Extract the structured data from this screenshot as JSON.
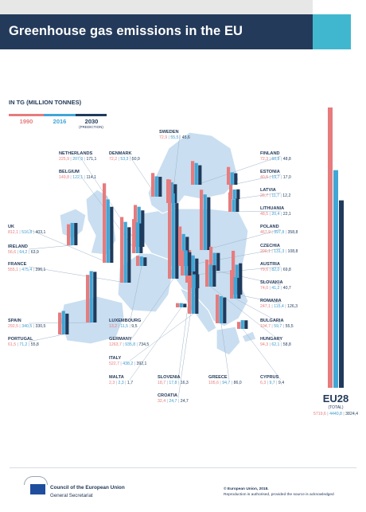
{
  "title": "Greenhouse gas emissions in the EU",
  "unit_label": "IN TG (MILLION TONNES)",
  "legend": [
    {
      "label": "1990",
      "sub": "",
      "color": "#e77b7d"
    },
    {
      "label": "2016",
      "sub": "",
      "color": "#41a6d6"
    },
    {
      "label": "2030",
      "sub": "(PREDICTION)",
      "color": "#1f3a5c"
    }
  ],
  "chart_data": {
    "type": "bar",
    "series": [
      {
        "name": "1990",
        "color": "#e77b7d"
      },
      {
        "name": "2016",
        "color": "#41a6d6"
      },
      {
        "name": "2030",
        "color": "#1f3a5c"
      }
    ],
    "countries": [
      {
        "name": "SWEDEN",
        "values": [
          72.9,
          55.5,
          45.6
        ]
      },
      {
        "name": "NETHERLANDS",
        "values": [
          225.9,
          207.0,
          171.1
        ]
      },
      {
        "name": "DENMARK",
        "values": [
          72.2,
          53.3,
          50.9
        ]
      },
      {
        "name": "BELGIUM",
        "values": [
          149.8,
          122.1,
          114.1
        ]
      },
      {
        "name": "UK",
        "values": [
          812.1,
          516.8,
          403.1
        ]
      },
      {
        "name": "IRELAND",
        "values": [
          56.6,
          64.2,
          63.9
        ]
      },
      {
        "name": "FRANCE",
        "values": [
          555.1,
          475.4,
          396.1
        ]
      },
      {
        "name": "SPAIN",
        "values": [
          292.5,
          340.5,
          330.5
        ]
      },
      {
        "name": "PORTUGAL",
        "values": [
          61.5,
          71.2,
          55.8
        ]
      },
      {
        "name": "LUXEMBOURG",
        "values": [
          13.2,
          11.5,
          9.5
        ]
      },
      {
        "name": "GERMANY",
        "values": [
          1263.7,
          935.8,
          734.5
        ]
      },
      {
        "name": "ITALY",
        "values": [
          522.7,
          438.2,
          392.1
        ]
      },
      {
        "name": "MALTA",
        "values": [
          2.3,
          2.3,
          1.7
        ]
      },
      {
        "name": "SLOVENIA",
        "values": [
          18.7,
          17.8,
          16.3
        ]
      },
      {
        "name": "CROATIA",
        "values": [
          32.4,
          24.7,
          24.7
        ]
      },
      {
        "name": "GREECE",
        "values": [
          105.6,
          94.7,
          86.0
        ]
      },
      {
        "name": "CYPRUS",
        "values": [
          6.3,
          9.7,
          9.4
        ]
      },
      {
        "name": "FINLAND",
        "values": [
          72.3,
          60.8,
          48.8
        ]
      },
      {
        "name": "ESTONIA",
        "values": [
          40.5,
          19.7,
          17.0
        ]
      },
      {
        "name": "LATVIA",
        "values": [
          26.7,
          11.7,
          12.2
        ]
      },
      {
        "name": "LITHUANIA",
        "values": [
          48.5,
          20.4,
          22.1
        ]
      },
      {
        "name": "POLAND",
        "values": [
          467.9,
          397.8,
          358.8
        ]
      },
      {
        "name": "CZECHIA",
        "values": [
          200.1,
          131.3,
          108.8
        ]
      },
      {
        "name": "AUSTRIA",
        "values": [
          79.6,
          82.0,
          69.8
        ]
      },
      {
        "name": "SLOVAKIA",
        "values": [
          74.0,
          41.2,
          40.7
        ]
      },
      {
        "name": "ROMANIA",
        "values": [
          247.1,
          115.4,
          126.3
        ]
      },
      {
        "name": "BULGARIA",
        "values": [
          104.7,
          59.7,
          55.5
        ]
      },
      {
        "name": "HUNGARY",
        "values": [
          94.3,
          62.1,
          58.8
        ]
      }
    ],
    "total": {
      "name": "EU28",
      "sub": "(TOTAL)",
      "values": [
        5719.6,
        4440.8,
        3824.4
      ]
    }
  },
  "footer": {
    "org": "Council of the European Union",
    "sub": "General Secretariat",
    "copyright": "© European Union, 2018.",
    "rights": "Reproduction is authorised, provided the source is acknowledged"
  }
}
